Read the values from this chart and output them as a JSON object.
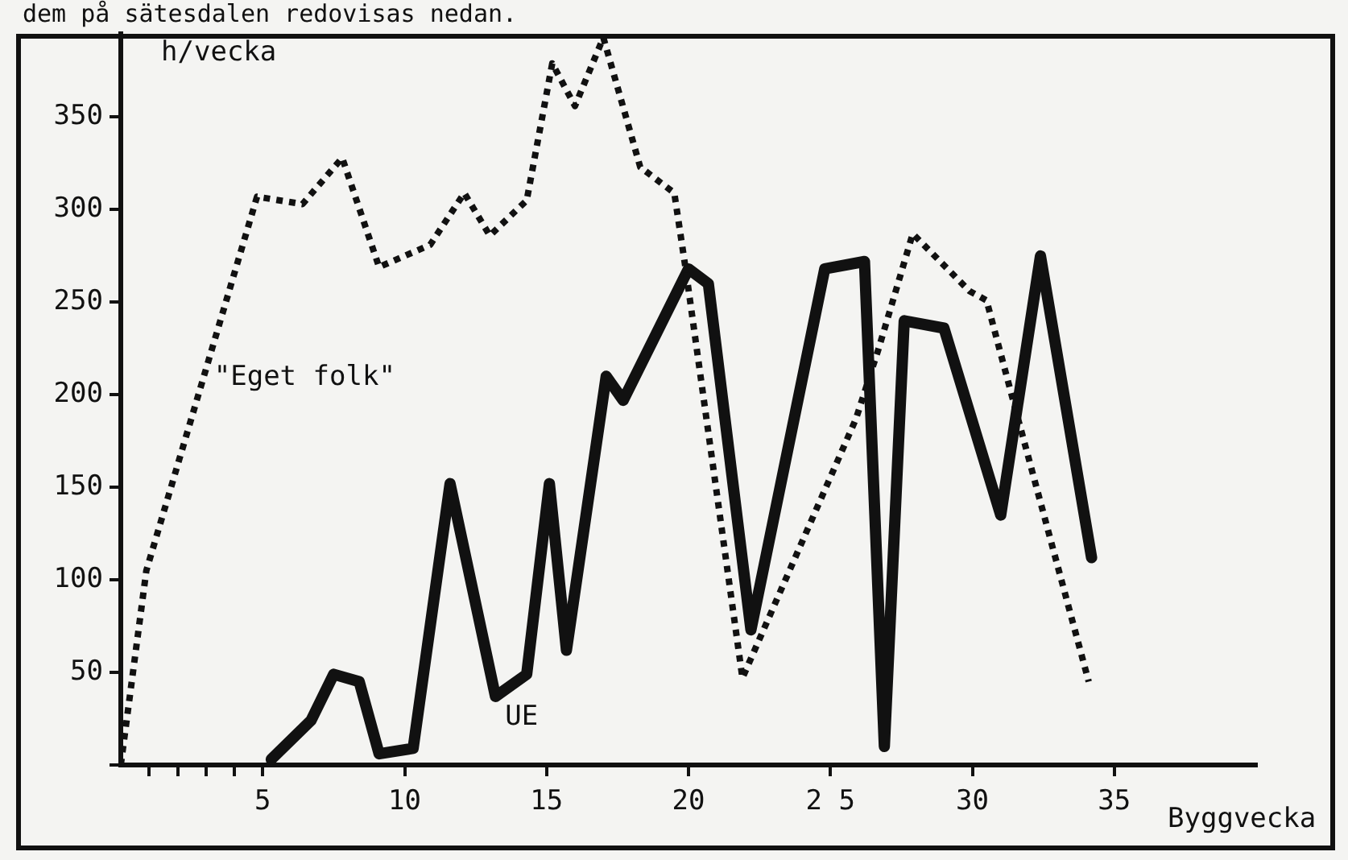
{
  "chart_data": {
    "type": "line",
    "xlabel": "Byggvecka",
    "ylabel": "h/vecka",
    "annotations": [
      "dem på sätesdalen redovisas nedan."
    ],
    "xlim": [
      0,
      40
    ],
    "ylim": [
      0,
      395
    ],
    "xticks": [
      {
        "value": 1,
        "label": null
      },
      {
        "value": 2,
        "label": null
      },
      {
        "value": 3,
        "label": null
      },
      {
        "value": 4,
        "label": null
      },
      5,
      10,
      15,
      20,
      {
        "value": 25,
        "label": "2 5"
      },
      30,
      35
    ],
    "yticks": [
      {
        "value": 0,
        "label": null
      },
      50,
      100,
      150,
      200,
      250,
      300,
      350
    ],
    "grid": false,
    "legend": false,
    "marker": "none",
    "series": [
      {
        "name": "\"Eget folk\"",
        "color": "#111111",
        "line_style": "dotted",
        "x": [
          0,
          0.9,
          4.8,
          6.4,
          7.8,
          9.1,
          10.9,
          12.1,
          13,
          14.3,
          15.2,
          16,
          17,
          18.3,
          19.5,
          19.9,
          21.9,
          25.9,
          26.7,
          27.9,
          29.9,
          30.5,
          31.4,
          34.1
        ],
        "values": [
          0,
          105,
          307,
          303,
          328,
          269,
          281,
          309,
          286,
          305,
          379,
          356,
          393,
          323,
          309,
          268,
          47,
          187,
          225,
          287,
          256,
          251,
          199,
          45
        ]
      },
      {
        "name": "UE",
        "color": "#111111",
        "line_style": "solid",
        "x": [
          5.3,
          6.7,
          7.5,
          8.4,
          9.1,
          10.3,
          11.6,
          13.2,
          14.3,
          15.1,
          15.7,
          17.1,
          17.7,
          20,
          20.7,
          22.2,
          24.8,
          26.2,
          26.9,
          27.6,
          29,
          31,
          32.4,
          34.2
        ],
        "values": [
          3,
          24,
          49,
          45,
          6,
          9,
          152,
          37,
          49,
          152,
          62,
          210,
          197,
          268,
          260,
          73,
          268,
          272,
          10,
          240,
          236,
          135,
          275,
          112
        ]
      }
    ]
  }
}
